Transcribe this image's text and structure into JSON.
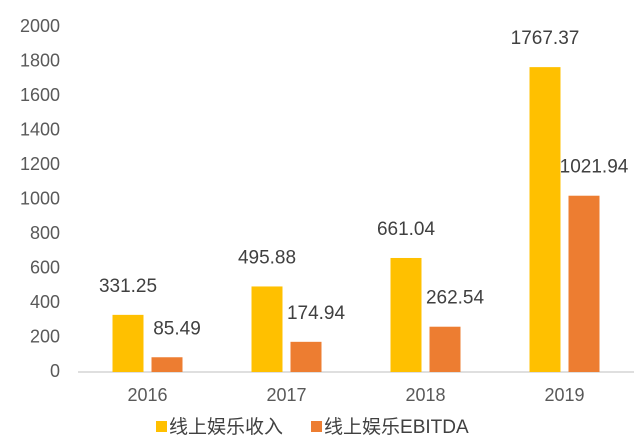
{
  "chart_data": {
    "type": "bar",
    "categories": [
      "2016",
      "2017",
      "2018",
      "2019"
    ],
    "series": [
      {
        "name": "线上娱乐收入",
        "color": "#FFC000",
        "values": [
          331.25,
          495.88,
          661.04,
          1767.37
        ]
      },
      {
        "name": "线上娱乐EBITDA",
        "color": "#ED7D31",
        "values": [
          85.49,
          174.94,
          262.54,
          1021.94
        ]
      }
    ],
    "ylim": [
      0,
      2000
    ],
    "yticks": [
      0,
      200,
      400,
      600,
      800,
      1000,
      1200,
      1400,
      1600,
      1800,
      2000
    ],
    "grid": false,
    "legend": "bottom"
  }
}
